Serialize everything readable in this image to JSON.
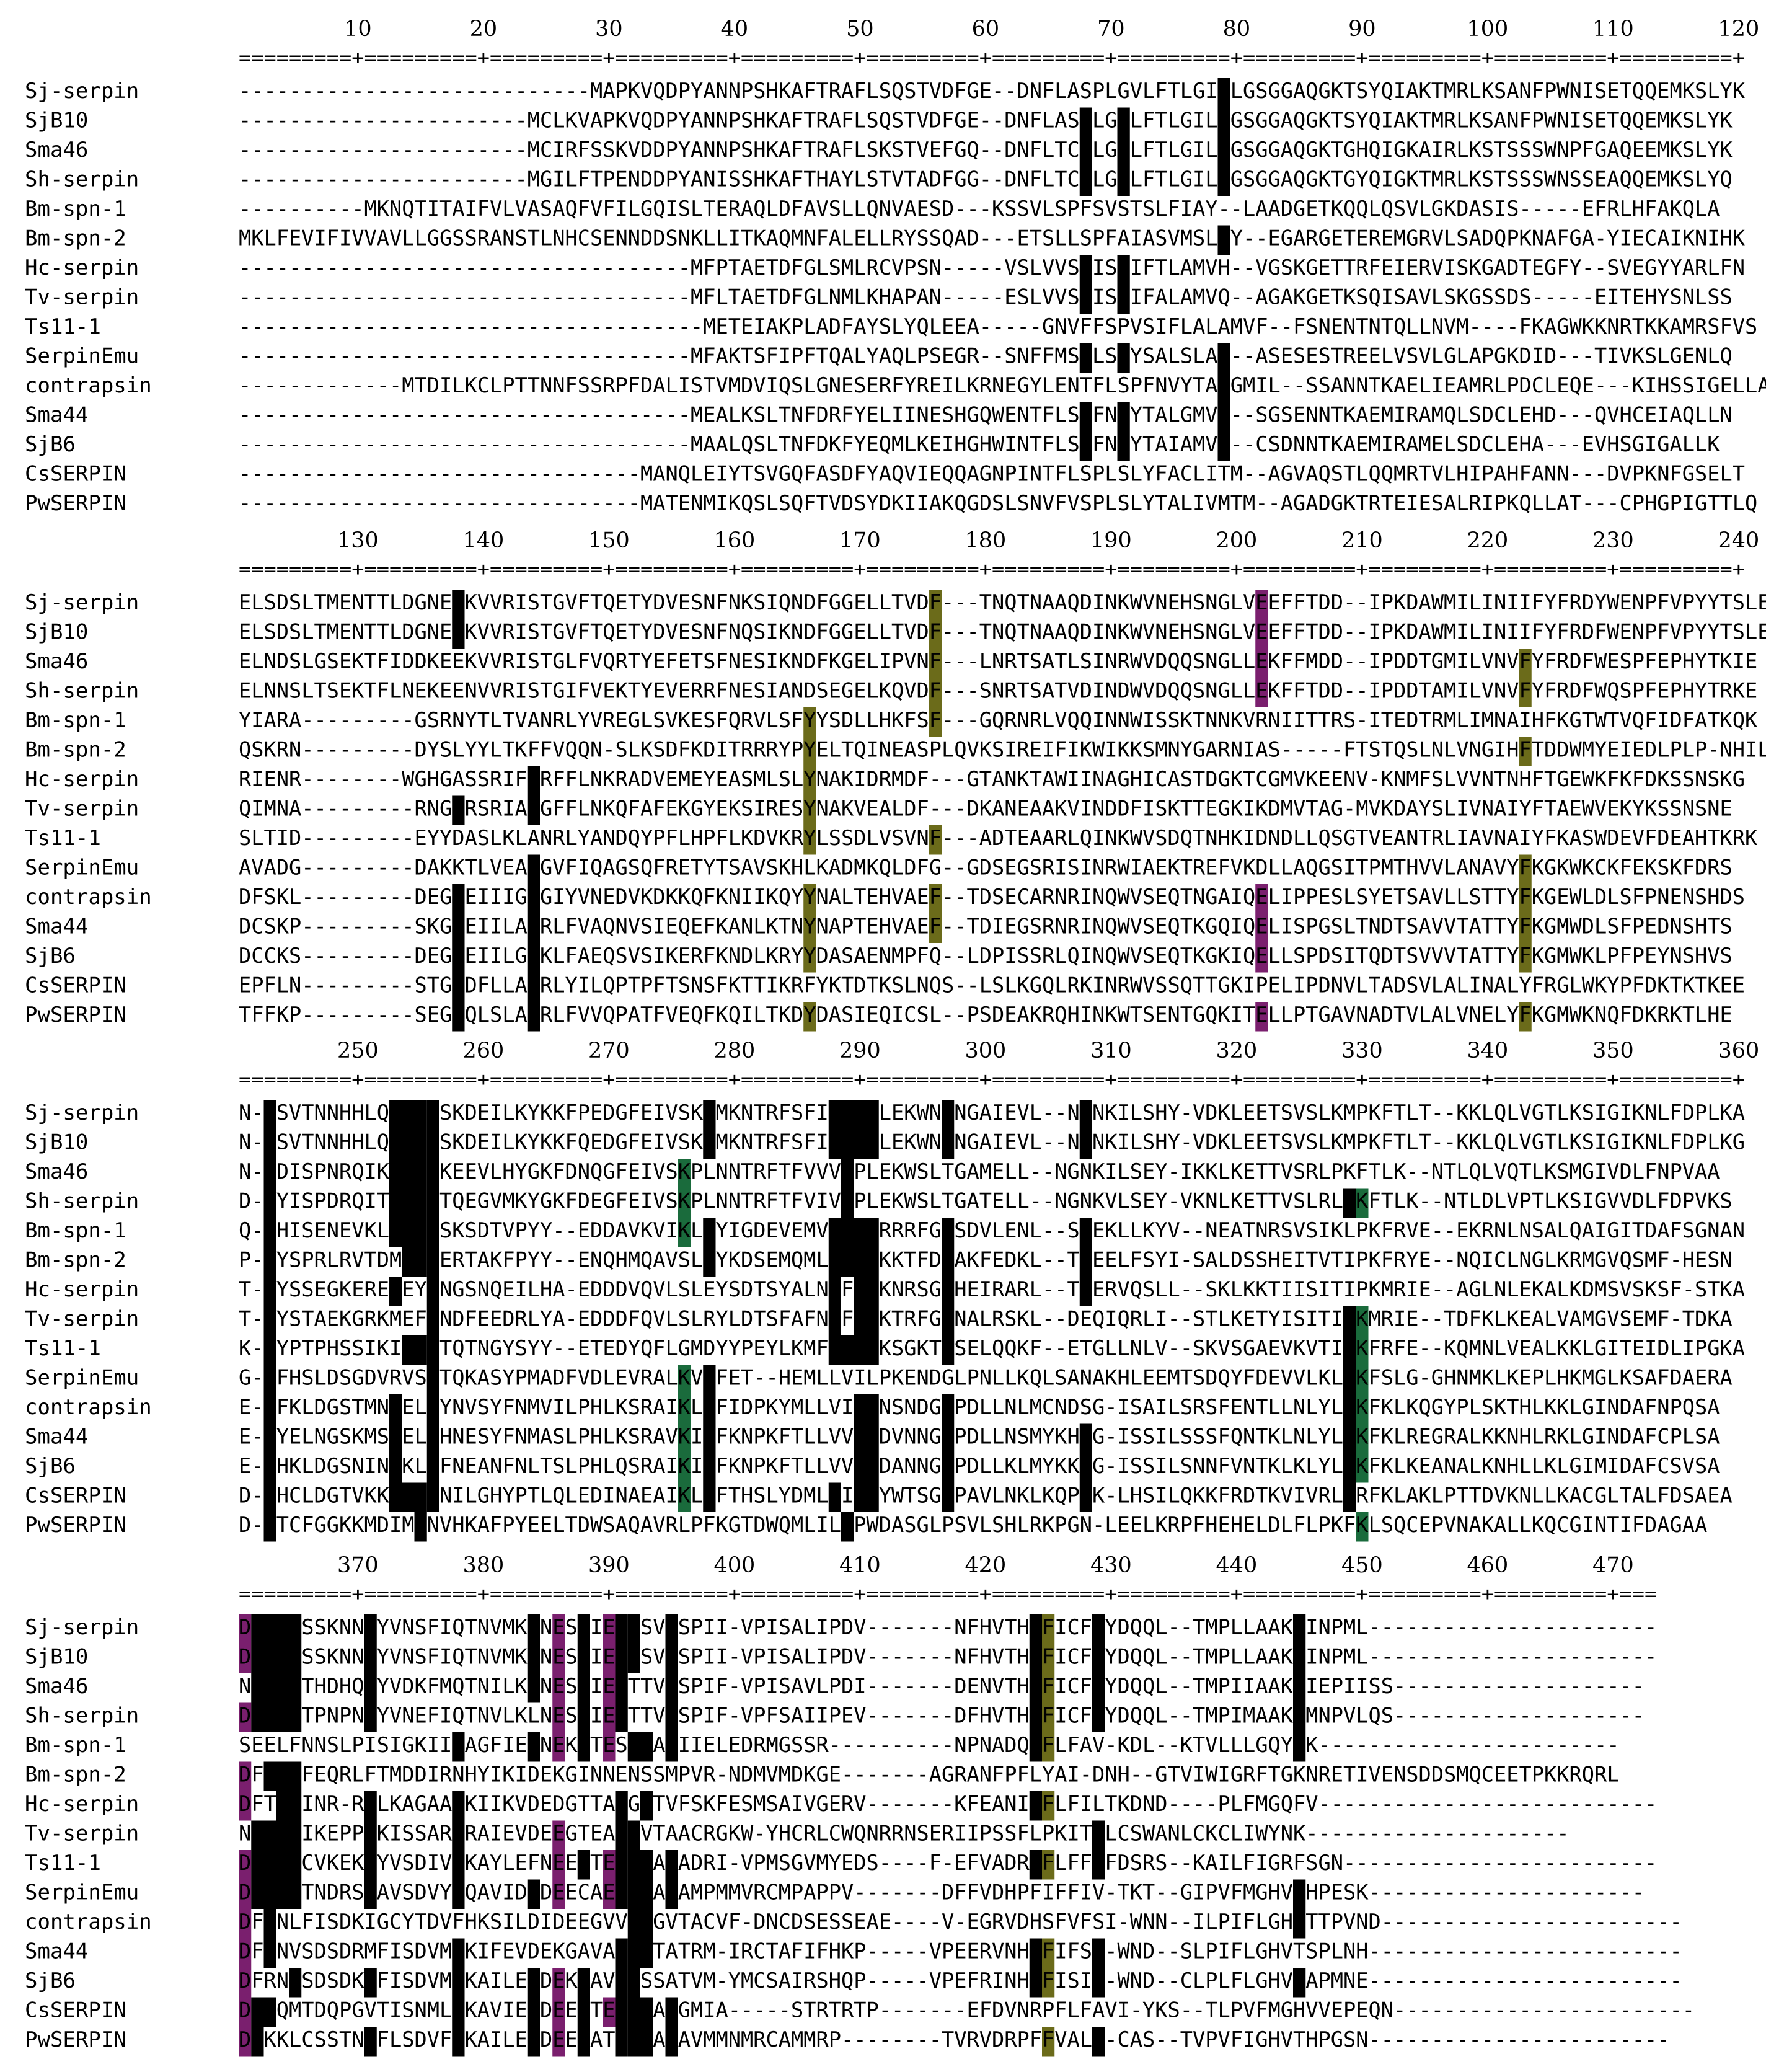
{
  "species": [
    "Sj-serpin",
    "SjB10",
    "Sma46",
    "Sh-serpin",
    "Bm-spn-1",
    "Bm-spn-2",
    "Hc-serpin",
    "Tv-serpin",
    "Ts11-1",
    "SerpinEmu",
    "contrapsin",
    "Sma44",
    "SjB6",
    "CsSERPIN",
    "PwSERPIN"
  ],
  "colors": {
    "identical": "#000000",
    "conserved": "#1a6b3c",
    "similar": "#7a1f6e",
    "weak": "#6b6b1a",
    "text_on_dark": "#ffffff",
    "text_default": "#000000"
  },
  "blocks": [
    {
      "ruler_numbers": [
        "10",
        "20",
        "30",
        "40",
        "50",
        "60",
        "70",
        "80",
        "90",
        "100",
        "110",
        "120"
      ],
      "ruler": "=========+=========+=========+=========+=========+=========+=========+=========+=========+=========+=========+=========+",
      "rows": [
        "----------------------------MAPKVQDPYANNPSHKAFTRAFLSQSTVDFGE--DNFLASPLGVLFTLGILLGSGGAQGKTSYQIAKTMRLKSANFPWNISETQQEMKSLYK",
        "-----------------------MCLKVAPKVQDPYANNPSHKAFTRAFLSQSTVDFGE--DNFLASPLGVLFTLGILLGSGGAQGKTSYQIAKTMRLKSANFPWNISETQQEMKSLYK",
        "-----------------------MCIRFSSKVDDPYANNPSHKAFTRAFLSKSTVEFGQ--DNFLTCPLGVLFTLGILLGSGGAQGKTGHQIGKAIRLKSTSSSWNPFGAQEEMKSLYK",
        "-----------------------MGILFTPENDDPYANISSHKAFTHAYLSTVTADFGG--DNFLTCPLGVLFTLGILLGSGGAQGKTGYQIGKTMRLKSTSSSWNSSEAQQEMKSLYQ",
        "----------MKNQTITAIFVLVASAQFVFILGQISLTERAQLDFAVSLLQNVAESD---KSSVLSPFSVSTSLFIAY--LAADGETKQQLQSVLGKDASIS-----EFRLHFAKQLA",
        "MKLFEVIFIVVAVLLGGSSRANSTLNHCSENNDDSNKLLITKAQMNFALELLRYSSQAD---ETSLLSPFAIASVMSLLY--EGARGETEREMGRVLSADQPKNAFGA-YIECAIKNIHK",
        "------------------------------------MFPTAETDFGLSMLRCVPSN-----VSLVVSPISVIFTLAMVH--VGSKGETTRFEIERVISKGADTEGFY--SVEGYYARLFN",
        "------------------------------------MFLTAETDFGLNMLKHAPAN-----ESLVVSPISVIFALAMVQ--AGAKGETKSQISAVLSKGSSDS-----EITEHYSNLSS",
        "-------------------------------------METEIAKPLADFAYSLYQLEEA-----GNVFFSPVSIFLALAMVF--FSNENTNTQLLNVM----FKAGWKKNRTKKAMRSFVS",
        "------------------------------------MFAKTSFIPFTQALYAQLPSEGR--SNFFMSPLSVYSALSLAL--ASESESTREELVSVLGLAPGKDID---TIVKSLGENLQ",
        "-------------MTDILKCLPTTNNFSSRPFDALISTVMDVIQSLGNESERFYREILKRNEGYLENTFLSPFNVYTALGMIL--SSANNTKAELIEAMRLPDCLEQE---KIHSSIGELLA",
        "------------------------------------MEALKSLTNFDRFYELIINESHGQWENTFLSPFNVYTALGMVL--SGSENNTKAEMIRAMQLSDCLEHD---QVHCEIAQLLN",
        "------------------------------------MAALQSLTNFDKFYEQMLKEIHGHWINTFLSPFNVYTAIAMVL--CSDNNTKAEMIRAMELSDCLEHA---EVHSGIGALLK",
        "--------------------------------MANQLEIYTSVGQFASDFYAQVIEQQAGNPINTFLSPLSLYFACLITM--AGVAQSTLQQMRTVLHIPAHFANN---DVPKNFGSELT",
        "--------------------------------MATENMIKQSLSQFTVDSYDKIIAKQGDSLSNVFVSPLSLYTALIVMTM--AGADGKTRTEIESALRIPKQLLAT---CPHGPIGTTLQ"
      ]
    },
    {
      "ruler_numbers": [
        "130",
        "140",
        "150",
        "160",
        "170",
        "180",
        "190",
        "200",
        "210",
        "220",
        "230",
        "240"
      ],
      "ruler": "=========+=========+=========+=========+=========+=========+=========+=========+=========+=========+=========+=========+",
      "rows": [
        "ELSDSLTMENTTLDGNEVKVVRISTGVFTQETYDVESNFNKSIQNDFGGELLTVDF---TNQTNAAQDINKWVNEHSNGLVEEFFTDD--IPKDAWMILINIIFYFRDYWENPFVPYYTSLE",
        "ELSDSLTMENTTLDGNEVKVVRISTGVFTQETYDVESNFNQSIKNDFGGELLTVDF---TNQTNAAQDINKWVNEHSNGLVEEFFTDD--IPKDAWMILINIIFYFRDFWENPFVPYYTSLE",
        "ELNDSLGSEKTFIDDKEEKVVRISTGLFVQRTYEFETSFNESIKNDFKGELIPVNF---LNRTSATLSINRWVDQQSNGLLEKFFMDD--IPDDTGMILVNVFYFRDFWESPFEPHYTKIE",
        "ELNNSLTSEKTFLNEKEENVVRISTGIFVEKTYEVERRFNESIANDSEGELKQVDF---SNRTSATVDINDWVDQQSNGLLEKFFTDD--IPDDTAMILVNVFYFRDFWQSPFEPHYTRKE",
        "YIARA---------GSRNYTLTVANRLYVREGLSVKESFQRVLSFYYSDLLHKFSF---GQRNRLVQQINNWISSKTNNKVRNIITTRS-ITEDTRMLIMNAIHFKGTWTVQFIDFATKQK",
        "QSKRN---------DYSLYYLTKFFVQQN-SLKSDFKDITRRRYPYELTQINEASPLQVKSIREIFIKWIKKSMNYGARNIAS-----FTSTQSLNLVNGIHFTDDWMYEIEDLPLP-NHIL",
        "RIENR--------WGHGASSRIFNRFFLNKRADVEMEYEASMLSLYNAKIDRMDF---GTANKTAWIINAGHICASTDGKTCGMVKEENV-KNMFSLVVNTNHFTGEWKFKFDKSSNSKG",
        "QIMNA---------RNGVRSRIANGFFLNKQFAFEKGYEKSIRESYNAKVEALDF---DKANEAAKVINDDFISKTTEGKIKDMVTAG-MVKDAYSLIVNAIYFTAEWVEKYKSSNSNE",
        "SLTID---------EYYDASLKLANRLYANDQYPFLHPFLKDVKRYLSSDLVSVNF---ADTEAARLQINKWVSDQTNHKIDNDLLQSGTVEANTRLIAVNAIYFKASWDEVFDEAHTKRK",
        "AVADG---------DAKKTLVEANGVFIQAGSQFRETYTSAVSKHLKADMKQLDFG--GDSEGSRISINRWIAEKTREFVKDLLAQGSITPMTHVVLANAVYFKGKWKCKFEKSKFDRS",
        "DFSKL---------DEGVEIIIGNGIYVNEDVKDKKQFKNIIKQYYNALTEHVAEF--TDSECARNRINQWVSEQTNGAIQELIPPESLSYETSAVLLSTTYFKGEWLDLSFPNENSHDS",
        "DCSKP---------SKGVEIILANRLFVAQNVSIEQEFKANLKTNYNAPTEHVAEF--TDIEGSRNRINQWVSEQTKGQIQELISPGSLTNDTSAVVTATTYFKGMWDLSFPEDNSHTS",
        "DCCKS---------DEGVEIILGNKLFAEQSVSIKERFKNDLKRYYDASAENMPFQ--LDPISSRLQINQWVSEQTKGKIQELLSPDSITQDTSVVVTATTYFKGMWKLPFPEYNSHVS",
        "EPFLN---------STGVDFLLANRLYILQPTPFTSNSFKTTIKRFYKTDTKSLNQS--LSLKGQLRKINRWVSSQTTGKIPELIPDNVLTADSVLALINALYFRGLWKYPFDKTKTKEE",
        "TFFKP---------SEGVQLSLANRLFVVQPATFVEQFKQILTKDYDASIEQICSL--PSDEAKRQHINKWTSENTGQKITELLPTGAVNADTVLALVNELYFKGMWKNQFDKRKTLHE"
      ]
    },
    {
      "ruler_numbers": [
        "250",
        "260",
        "270",
        "280",
        "290",
        "300",
        "310",
        "320",
        "330",
        "340",
        "350",
        "360"
      ],
      "ruler": "=========+=========+=========+=========+=========+=========+=========+=========+=========+=========+=========+=========+",
      "rows": [
        "N-FSVTNNHHLQVPMMSKDEILKYKKFPEDGFEIVSKPMKNTRFSFIILLPLEKWNLNGAIEVL--NGNKILSHY-VDKLEETSVSLKMPKFTLT--KKLQLVGTLKSIGIKNLFDPLKA",
        "N-FSVTNNHHLQVPMMSKDEILKYKKFQEDGFEIVSKPMKNTRFSFIILLPLEKWNLNGAIEVL--NGNKILSHY-VDKLEETSVSLKMPKFTLT--KKLQLVGTLKSIGIKNLFDPLKG",
        "N-FDISPNRQIKVPMMKEEVLHYGKFDNQGFEIVSKPLNNTRFTFVVVLPLEKWSLTGAMELL--NGNKILSEY-IKKLKETTVSRLPKFTLK--NTLQLVQTLKSMGIVDLFNPVAA",
        "D-FYISPDRQITVPMMTQEGVMKYGKFDEGFEIVSKPLNNTRFTFVIVLPLEKWSLTGATELL--NGNKVLSEY-VKNLKETTVSLRLPKFTLK--NTLDLVPTLKSIGVVDLFDPVKS",
        "Q-FHISENEVKLVPMMSKSDTVPYY--EDDAVKVIKLPYIGDEVEMVILLPRRRFGLSDVLENL--SGEKLLKYV--NEATNRSVSIKLPKFRVE--EKRNLNSALQAIGITDAFSGNAN",
        "P-FYSPRLRVTDMPMMERTAKFPYY--ENQHMQAVSLPYKDSEMQMLILLPKKTFDLAKFEDKL--TGEELFSYI-SALDSSHEITVTIPKFRYE--NQICLNGLKRMGVQSMF-HESN",
        "T-FYSSEGKEREVEYMNGSNQEILHA-EDDDVQVLSLEYSDTSYALNIFLPKNRSGLHEIRARL--TGERVQSLL--SKLKKTIISITIPKMRIE--AGLNLEKALKDMSVSKSF-STKA",
        "T-FYSTAEKGRKMEFMNDFEEDRLYA-EDDDFQVLSLRYLDTSFAFNIFLPKTRFGLNALRSKL--DEQIQRLI--STLKETYISITIPKMRIE--TDFKLKEALVAMGVSEMF-TDKA",
        "K-FYPTPHSSIKIPMMTQTNGYSYY--ETEDYQFLGMDYYPEYLKMFILLPKSGKTLSELQQKF--ETGLLNLV--SKVSGAEVKVTIPKFRFE--KQMNLVEALKKLGITEIDLIPGKA",
        "G-FFHSLDSGDVRVSMTQKASYPMADFVDLEVRALKVPFET--HEMLLVILPKENDGLPNLLKQLSANAKHLEEMTSDQYFDEVVLKLPKFSLG-GHNMKLKEPLHKMGLKSAFDAERA",
        "E-FFKLDGSTMNVELMYNVSYFNMVILPHLKSRAIKLPFIDPKYMLLVILPNSNDGLPDLLNLMCNDSG-ISAILSRSFENTLLNLYLPKFKLKQGYPLSKTHLKKLGINDAFNPQSA",
        "E-FYELNGSKMSVELMHNESYFNMASLPHLKSRAVKIPFKNPKFTLLVVLPDVNNGLPDLLNSMYKHGG-ISSILSSSFQNTKLNLYLPKFKLREGRALKKNHLRKLGINDAFCPLSA",
        "E-FHKLDGSNINVKLMFNEANFNLTSLPHLQSRAIKIPFKNPKFTLLVVLPDANNGLPDLLKLMYKKGG-ISSILSNNFVNTKLKLYLPKFKLKEANALKNHLLKLGIMIDAFCSVSA",
        "D-FHCLDGTVKKVPMMNILGHYPTLQLEDINAEAIKLPFTHSLYDMLIILPYWTSGLPAVLNKLKQPGK-LHSILQKKFRDTKVIVRLPRFKLAKLPTTDVKNLLKACGLTALFDSAEA",
        "D-FTCFGGKKMDIMMNVHKAFPYEELTDWSAQAVRLPFKGTDWQMLILLPWDASGLPSVLSHLRKPGN-LEELKRPFHEHELDLFLPKFKLSQCEPVNAKALLKQCGINTIFDAGAA"
      ]
    },
    {
      "ruler_numbers": [
        "370",
        "380",
        "390",
        "400",
        "410",
        "420",
        "430",
        "440",
        "450",
        "460",
        "470"
      ],
      "ruler": "=========+=========+=========+=========+=========+=========+=========+=========+=========+=========+=========+===",
      "rows": [
        "DLSGISSKNNLYVNSFIQTNVMKVNESGIEAASVTSPII-VPISALIPDV-------NFHVTHPFICFIYDQQL--TMPLLAAKVINPML-----------------------",
        "DLSGISSKNNLYVNSFIQTNVMKVNESGIEAASVTSPII-VPISALIPDV-------NFHVTHPFICFIYDQQL--TMPLLAAKVINPML-----------------------",
        "NLSGITHDHQLYVDKFMQTNILKVNESGIEATTVTSPIF-VPISAVLPDI-------DENVTHPFICFIYDQQL--TMPIIAAKVIEPIISS--------------------",
        "DLSGITPNPNLYVNEFIQTNVLKLNESGIEATTVTSPIF-VPFSAIIPEV-------DFHVTHPFICFIYDQQL--TMPIMAAKVMNPVLQS--------------------",
        "SEELFNNSLPISIGKIIHAGFIEVNEKGTESAAATIIELEDRMGSSR----------NPNADQPFLFAV-KDL--KTVLLLGQYVK------------------------",
        "DFSGIFEQRLFTMDDIRNHYIKIDEKGINNENSSMPVR-NDMVMDKGE-------AGRANFPFLYAI-DNH--GTVIWIGRFTGKNRETIVENSDDSMQCEETPKKRQRL",
        "DFTGIINR-RLLKAGAAHKIIKVDEDGTTAAGATVFSKFESMSAIVGERV-------KFEANIPFLFILTKDND----PLFMGQFV---------------------------",
        "NLSGIIKEPPLKISSARHRAIEVDEEGTEAAAVTAACRGKW-YHCRLCWQNRRNSERIIPSSFLPKITILCSWANLCKCLIWYNK---------------------",
        "DLSGICVKEKLYVSDIVHKAYLEFNEEGTEAAAATADRI-VPMSGVMYEDS----F-EFVADRPFLFFIFDSRS--KAILFIGRFSGN-------------------------",
        "DLSGITNDRSLAVSDVYHQAVIDVDEECAEAAAATAMPMMVRCMPAPPV-------DFFVDHPFIFFIV-TKT--GIPVFMGHVVHPESK----------------------",
        "DFSNLFISDKIGCYTDVFHKSILDIDEEGVVAAGVTACVF-DNCDSESSEAE----V-EGRVDHSFVFSI-WNN--ILPIFLGHVTTPVND------------------------",
        "DFSNVSDSDRMFISDVMHKIFEVDEKGAVAAAATATRM-IRCTAFIFHKP-----VPEERVNHPFIFSI-WND--SLPIFLGHVTSPLNH-------------------------",
        "DFRNISDSDKLFISDVMHKAILEVDEKGAVAASSATVM-YMCSAIRSHQP-----VPEFRINHPFISII-WND--CLPLFLGHVVAPMNE-------------------------",
        "DLSQMTDQPGVTISNMLHKAVIEVDEEGTEAAAATGMIA-----STRTRTP-------EFDVNRPFLFAVI-YKS--TLPVFMGHVVEPEQN------------------------",
        "DLKKLCSSTNLFLSDVFHKAILEVDEEGATAAAATAVMMNMRCAMMRP--------TVRVDRPFFVALI-CAS--TVPVFIGHVTHPGSN------------------------"
      ]
    }
  ]
}
